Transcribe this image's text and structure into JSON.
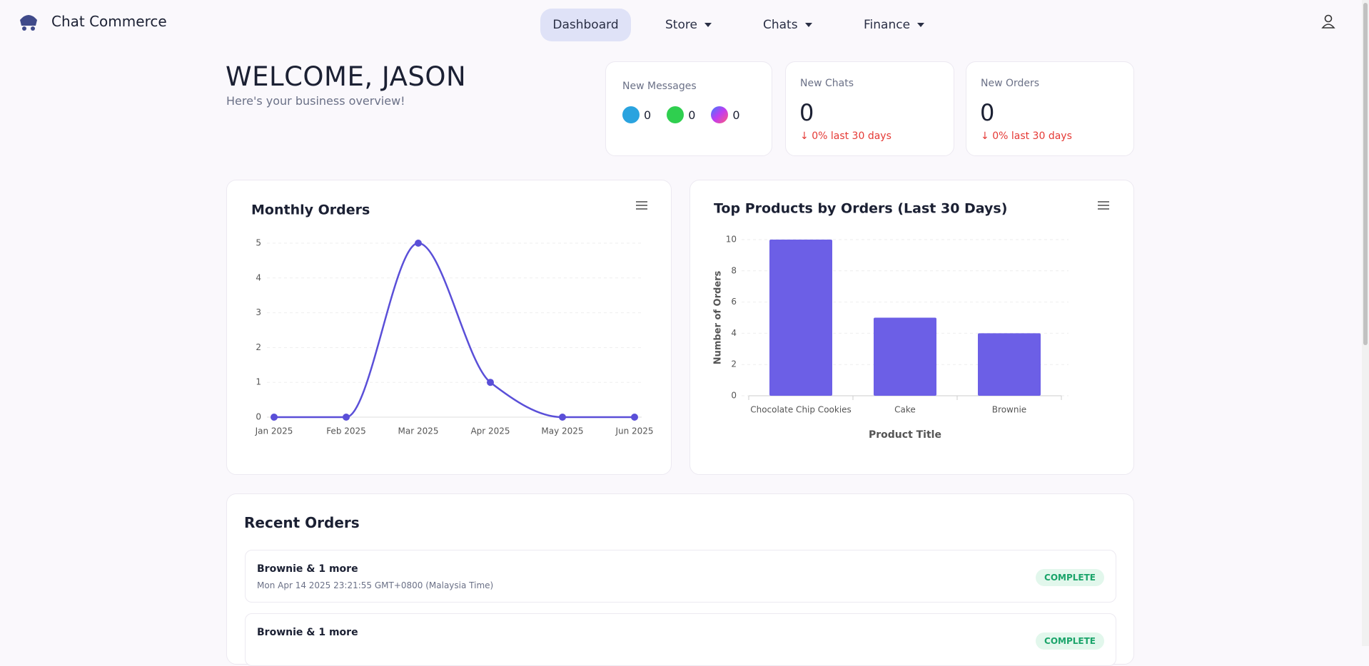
{
  "nav": {
    "brand": "Chat Commerce",
    "items": [
      "Dashboard",
      "Store",
      "Chats",
      "Finance"
    ]
  },
  "header": {
    "title": "WELCOME, JASON",
    "subtitle": "Here's your business overview!"
  },
  "messages": {
    "label": "New Messages",
    "channels": [
      0,
      0,
      0
    ]
  },
  "stats": [
    {
      "label": "New Chats",
      "value": 0,
      "change": "0% last 30 days"
    },
    {
      "label": "New Orders",
      "value": 0,
      "change": "0% last 30 days"
    }
  ],
  "chart_data": [
    {
      "type": "line",
      "title": "Monthly Orders",
      "color": "#5a4fd8",
      "categories": [
        "Jan 2025",
        "Feb 2025",
        "Mar 2025",
        "Apr 2025",
        "May 2025",
        "Jun 2025"
      ],
      "values": [
        0,
        0,
        5,
        1,
        0,
        0
      ],
      "ylim": [
        0,
        5
      ],
      "yticks": [
        0,
        1,
        2,
        3,
        4,
        5
      ],
      "grid": true
    },
    {
      "type": "bar",
      "title": "Top Products by Orders (Last 30 Days)",
      "color": "#6c5fe6",
      "categories": [
        "Chocolate Chip Cookies",
        "Cake",
        "Brownie"
      ],
      "values": [
        10,
        5,
        4
      ],
      "ylim": [
        0,
        10
      ],
      "yticks": [
        0,
        2,
        4,
        6,
        8,
        10
      ],
      "grid": true,
      "x_label": "Product Title",
      "y_label": "Number of Orders"
    }
  ],
  "recent_orders": {
    "title": "Recent Orders",
    "rows": [
      {
        "title": "Brownie & 1 more",
        "date": "Mon Apr 14 2025 23:21:55 GMT+0800 (Malaysia Time)",
        "status": "COMPLETE"
      },
      {
        "title": "Brownie & 1 more",
        "date": "",
        "status": "COMPLETE"
      }
    ]
  }
}
